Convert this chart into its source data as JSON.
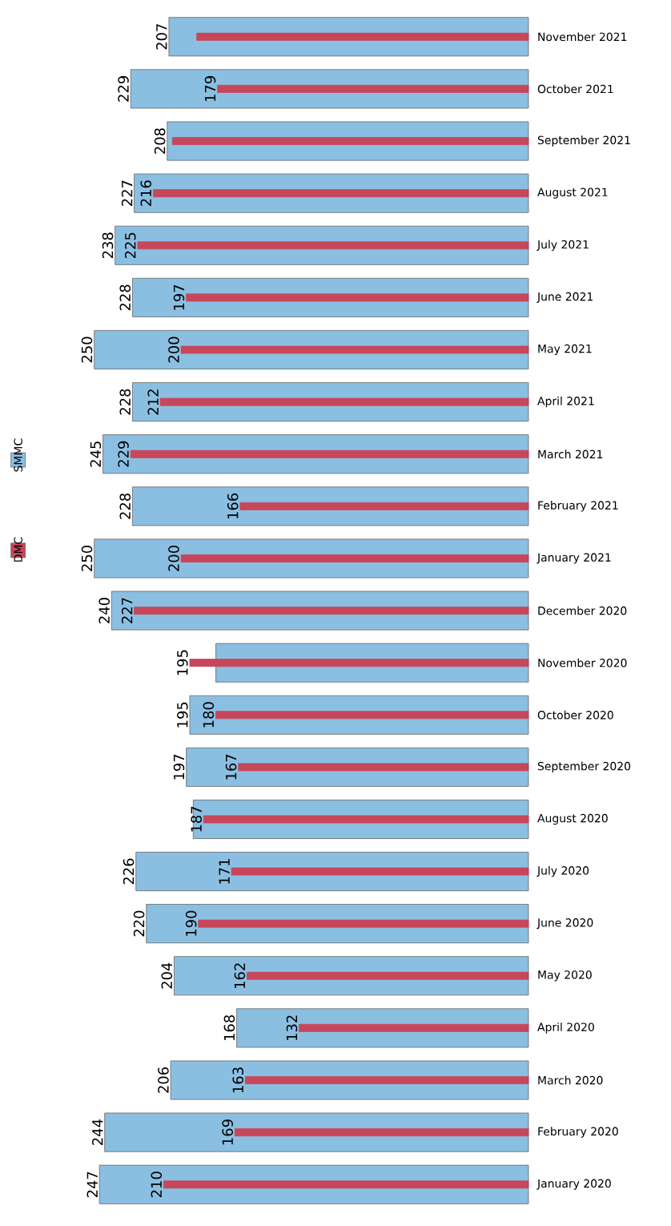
{
  "chart_data": {
    "type": "bar",
    "orientation": "horizontal",
    "legend": "left",
    "categories": [
      "November 2021",
      "October 2021",
      "September 2021",
      "August 2021",
      "July 2021",
      "June 2021",
      "May 2021",
      "April 2021",
      "March 2021",
      "February 2021",
      "January 2021",
      "December 2020",
      "November 2020",
      "October 2020",
      "September 2020",
      "August 2020",
      "July 2020",
      "June 2020",
      "May 2020",
      "April 2020",
      "March 2020",
      "February 2020",
      "January 2020"
    ],
    "series": [
      {
        "name": "SMMC",
        "color": "#8bbfe2",
        "values": [
          207,
          229,
          208,
          227,
          238,
          228,
          250,
          228,
          245,
          228,
          250,
          240,
          180,
          195,
          197,
          193,
          226,
          220,
          204,
          168,
          206,
          244,
          247
        ],
        "value_labels": [
          "207",
          "229",
          "208",
          "227",
          "238",
          "228",
          "250",
          "228",
          "245",
          "228",
          "250",
          "240",
          null,
          "195",
          "197",
          null,
          "226",
          "220",
          "204",
          "168",
          "206",
          "244",
          "247"
        ]
      },
      {
        "name": "DMC",
        "color": "#c8465a",
        "values": [
          191,
          179,
          205,
          216,
          225,
          197,
          200,
          212,
          229,
          166,
          200,
          227,
          195,
          180,
          167,
          187,
          171,
          190,
          162,
          132,
          163,
          169,
          210
        ],
        "value_labels": [
          null,
          "179",
          null,
          "216",
          "225",
          "197",
          "200",
          "212",
          "229",
          "166",
          "200",
          "227",
          "195",
          "180",
          "167",
          "187",
          "171",
          "190",
          "162",
          "132",
          "163",
          "169",
          "210"
        ]
      }
    ]
  }
}
